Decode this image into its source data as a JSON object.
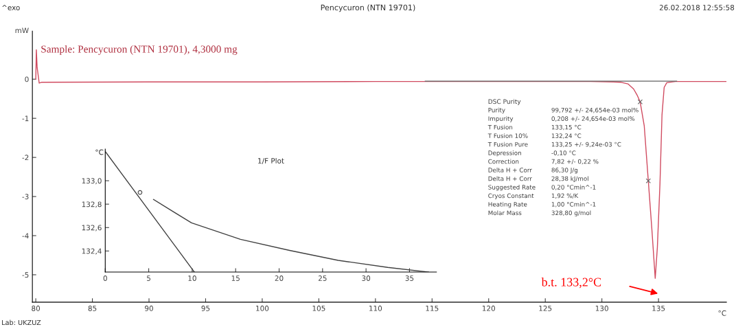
{
  "chart_data": [
    {
      "type": "line",
      "title": "Pencycuron (NTN 19701)",
      "xlabel": "°C",
      "ylabel": "mW",
      "xlim": [
        79.7,
        141.0
      ],
      "ylim": [
        -5.7,
        1.23
      ],
      "xticks": [
        80,
        85,
        90,
        95,
        100,
        105,
        110,
        115,
        120,
        125,
        130,
        135
      ],
      "yticks": [
        0,
        -1,
        -2,
        -3,
        -4,
        -5
      ],
      "grid": false,
      "legend": false,
      "line_style": "solid",
      "series": [
        {
          "color": "#d04a5f",
          "x": [
            80.0,
            80.05,
            80.12,
            80.3,
            80.5,
            90,
            100,
            110,
            120,
            126,
            129,
            131,
            131.7,
            132.3,
            132.8,
            133.1,
            133.38,
            133.74,
            134.1,
            134.41,
            134.71,
            134.9,
            135.13,
            135.31,
            135.5,
            135.73,
            136.5,
            141.0
          ],
          "values": [
            0.0,
            0.75,
            0.3,
            -0.1,
            -0.08,
            -0.07,
            -0.07,
            -0.06,
            -0.06,
            -0.06,
            -0.06,
            -0.07,
            -0.08,
            -0.12,
            -0.25,
            -0.4,
            -0.58,
            -1.19,
            -2.6,
            -3.82,
            -5.09,
            -4.3,
            -2.67,
            -0.91,
            -0.21,
            -0.09,
            -0.06,
            -0.06
          ]
        },
        {
          "color": "#606060",
          "x": [
            114.4,
            136.6
          ],
          "values": [
            -0.05,
            -0.05
          ]
        },
        {
          "type": "scatter",
          "marker": "cross",
          "color": "#606060",
          "x": [
            133.38,
            134.1
          ],
          "values": [
            -0.58,
            -2.6
          ]
        }
      ],
      "annotations": [
        "^exo",
        "26.02.2018 12:55:58",
        "Sample: Pencycuron (NTN 19701), 4,3000 mg",
        "Lab: UKZUZ",
        "DSC Purity",
        "Purity",
        "99,792 +/- 24,654e-03 mol%",
        "Impurity",
        "0,208 +/- 24,654e-03 mol%",
        "T Fusion",
        "133,15 °C",
        "T Fusion 10%",
        "132,24 °C",
        "T Fusion Pure",
        "133,25 +/- 9,24e-03 °C",
        "Depression",
        "-0,10 °C",
        "Correction",
        "7,82 +/- 0,22 %",
        "Delta H + Corr",
        "86,30 J/g",
        "Delta H + Corr",
        "28,38 kJ/mol",
        "Suggested Rate",
        "0,20 °Cmin^-1",
        "Cryos Constant",
        "1,92 %/K",
        "Heating Rate",
        "1,00 °Cmin^-1",
        "Molar Mass",
        "328,80 g/mol",
        "b.t. 133,2°C"
      ]
    },
    {
      "type": "line",
      "title": "1/F Plot",
      "ylabel": "°C",
      "xlim": [
        0,
        38.1
      ],
      "ylim": [
        132.22,
        133.27
      ],
      "xticks": [
        0,
        5,
        10,
        15,
        20,
        25,
        30,
        35
      ],
      "yticks": [
        {
          "value": 132.4,
          "label": "132,4"
        },
        {
          "value": 132.6,
          "label": "132,6"
        },
        {
          "value": 132.8,
          "label": "132,8"
        },
        {
          "value": 133.0,
          "label": "133,0"
        }
      ],
      "grid": false,
      "legend": false,
      "line_style": "solid",
      "series": [
        {
          "color": "#404040",
          "x": [
            0,
            10.25
          ],
          "values": [
            133.25,
            132.22
          ]
        },
        {
          "color": "#404040",
          "x": [
            5.55,
            9.92,
            15.55,
            21.2,
            26.8,
            32.5,
            37.2
          ],
          "values": [
            132.84,
            132.64,
            132.5,
            132.405,
            132.32,
            132.26,
            132.22
          ]
        },
        {
          "type": "scatter",
          "marker": "circle",
          "color": "#404040",
          "x": [
            4.0
          ],
          "values": [
            132.9
          ]
        }
      ]
    }
  ]
}
